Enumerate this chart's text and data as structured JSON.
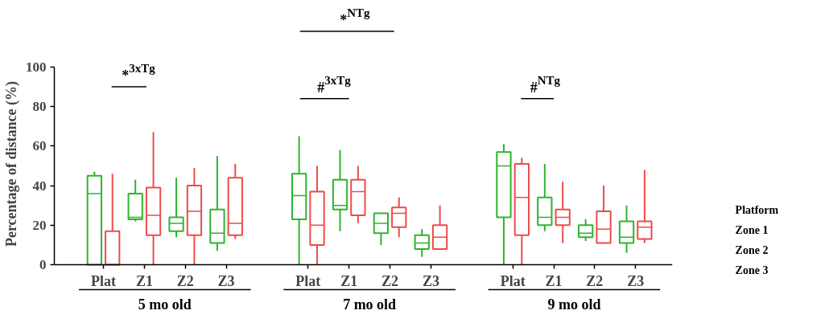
{
  "chart_data": {
    "type": "box",
    "ylabel": "Percentage of distance (%)",
    "categories": [
      "Plat",
      "Z1",
      "Z2",
      "Z3",
      "Plat",
      "Z1",
      "Z2",
      "Z3",
      "Plat",
      "Z1",
      "Z2",
      "Z3"
    ],
    "ylim": [
      0,
      100
    ],
    "yticks": [
      0,
      20,
      40,
      60,
      80,
      100
    ],
    "grid": false,
    "series": [
      {
        "color": "#2db52d",
        "boxes": [
          {
            "low": 0,
            "q1": 0,
            "median": 36,
            "q3": 45,
            "high": 47
          },
          {
            "low": 22,
            "q1": 23,
            "median": 24,
            "q3": 36,
            "high": 43
          },
          {
            "low": 14,
            "q1": 17,
            "median": 21,
            "q3": 24,
            "high": 44
          },
          {
            "low": 7,
            "q1": 11,
            "median": 16,
            "q3": 28,
            "high": 55
          },
          {
            "low": 0,
            "q1": 23,
            "median": 35,
            "q3": 46,
            "high": 65
          },
          {
            "low": 17,
            "q1": 28,
            "median": 30,
            "q3": 43,
            "high": 58
          },
          {
            "low": 10,
            "q1": 16,
            "median": 21,
            "q3": 26,
            "high": 26
          },
          {
            "low": 4,
            "q1": 8,
            "median": 11,
            "q3": 15,
            "high": 18
          },
          {
            "low": 0,
            "q1": 24,
            "median": 50,
            "q3": 57,
            "high": 61
          },
          {
            "low": 17,
            "q1": 20,
            "median": 24,
            "q3": 34,
            "high": 51
          },
          {
            "low": 12,
            "q1": 14,
            "median": 16,
            "q3": 20,
            "high": 23
          },
          {
            "low": 6,
            "q1": 11,
            "median": 14,
            "q3": 22,
            "high": 30
          }
        ]
      },
      {
        "color": "#ee4b4b",
        "boxes": [
          {
            "low": 0,
            "q1": 0,
            "median": 0,
            "q3": 17,
            "high": 46
          },
          {
            "low": 0,
            "q1": 15,
            "median": 25,
            "q3": 39,
            "high": 67
          },
          {
            "low": 0,
            "q1": 15,
            "median": 27,
            "q3": 40,
            "high": 49
          },
          {
            "low": 13,
            "q1": 15,
            "median": 21,
            "q3": 44,
            "high": 51
          },
          {
            "low": 0,
            "q1": 10,
            "median": 20,
            "q3": 37,
            "high": 50
          },
          {
            "low": 21,
            "q1": 25,
            "median": 37,
            "q3": 43,
            "high": 50
          },
          {
            "low": 14,
            "q1": 19,
            "median": 26,
            "q3": 29,
            "high": 34
          },
          {
            "low": 8,
            "q1": 8,
            "median": 14,
            "q3": 20,
            "high": 30
          },
          {
            "low": 0,
            "q1": 15,
            "median": 34,
            "q3": 51,
            "high": 54
          },
          {
            "low": 11,
            "q1": 20,
            "median": 24,
            "q3": 28,
            "high": 42
          },
          {
            "low": 11,
            "q1": 11,
            "median": 18,
            "q3": 27,
            "high": 40
          },
          {
            "low": 11,
            "q1": 13,
            "median": 19,
            "q3": 22,
            "high": 48
          }
        ]
      }
    ],
    "annotations": [
      "*$^{3xTg}$",
      "*$^{NTg}$",
      "#$^{3xTg}$",
      "#$^{NTg}$",
      "5 mo old",
      "7 mo old",
      "9 mo old",
      "Platform",
      "Zone 1",
      "Zone 2",
      "Zone 3"
    ]
  }
}
